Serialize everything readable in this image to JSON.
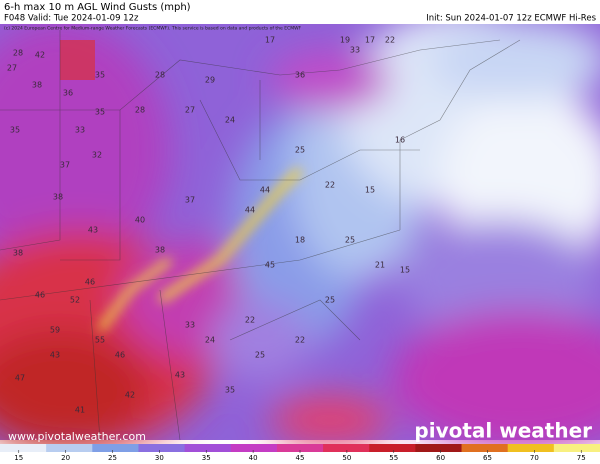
{
  "header": {
    "title": "6-h max 10 m AGL Wind Gusts (mph)",
    "valid": "F048 Valid: Tue 2024-01-09 12z",
    "init": "Init: Sun 2024-01-07 12z ECMWF Hi-Res",
    "credit": "(c) 2024 European Centre for Medium-range Weather Forecasts (ECMWF). This service is based on data and products of the ECMWF"
  },
  "map": {
    "values": [
      28,
      27,
      42,
      38,
      36,
      35,
      35,
      33,
      35,
      32,
      37,
      38,
      43,
      38,
      46,
      52,
      46,
      59,
      55,
      46,
      43,
      47,
      41,
      42,
      43,
      24,
      33,
      35,
      25,
      22,
      25,
      25,
      21,
      15,
      15,
      16,
      33,
      36,
      17,
      17,
      19,
      22,
      24,
      44,
      44,
      38,
      37,
      40,
      28,
      27,
      28,
      29,
      25,
      22,
      18,
      45,
      22
    ]
  },
  "colorbar": {
    "range": [
      13,
      77
    ],
    "ticks": [
      15,
      20,
      25,
      30,
      35,
      40,
      45,
      50,
      55,
      60,
      65,
      70,
      75
    ],
    "colors": [
      "#e8eef8",
      "#b8cdf0",
      "#7f9fe6",
      "#8a6fe0",
      "#a24fd8",
      "#c43cc4",
      "#d93a98",
      "#e0305a",
      "#c81e2a",
      "#a01818",
      "#e07020",
      "#f0c020",
      "#f8f080"
    ]
  },
  "watermark": {
    "url": "www.pivotalweather.com",
    "brand": "pivotal weather"
  }
}
